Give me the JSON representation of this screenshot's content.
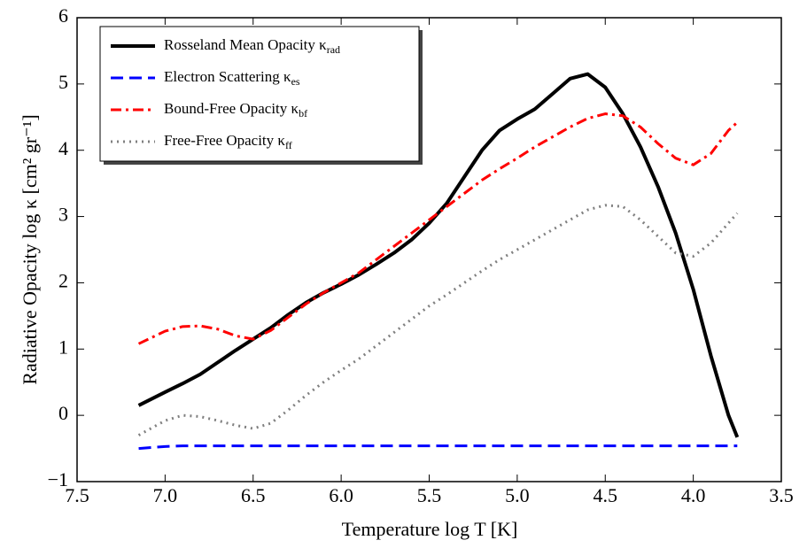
{
  "chart_data": {
    "type": "line",
    "xlabel": "Temperature log T [K]",
    "ylabel": "Radiative Opacity  log κ  [cm² gr⁻¹]",
    "xlim": [
      7.5,
      3.5
    ],
    "xticks": [
      7.5,
      {
        "value": 7.0,
        "label": "7.0"
      },
      6.5,
      {
        "value": 6.0,
        "label": "6.0"
      },
      5.5,
      {
        "value": 5.0,
        "label": "5.0"
      },
      4.5,
      {
        "value": 4.0,
        "label": "4.0"
      },
      3.5
    ],
    "ylim": [
      -1,
      6
    ],
    "yticks": [
      {
        "value": -1,
        "label": "−1"
      },
      0,
      1,
      2,
      3,
      4,
      5,
      6
    ],
    "legend": "upper left",
    "x": [
      7.15,
      7.0,
      6.9,
      6.8,
      6.7,
      6.6,
      6.5,
      6.4,
      6.3,
      6.2,
      6.1,
      6.0,
      5.9,
      5.8,
      5.7,
      5.6,
      5.5,
      5.4,
      5.3,
      5.2,
      5.1,
      5.0,
      4.9,
      4.8,
      4.7,
      4.6,
      4.5,
      4.4,
      4.3,
      4.2,
      4.1,
      4.0,
      3.9,
      3.8,
      3.75
    ],
    "series": [
      {
        "name": "Rosseland Mean Opacity κ",
        "name_sub": "rad",
        "color": "#000000",
        "style": "solid",
        "width": 4,
        "values": [
          0.15,
          0.35,
          0.48,
          0.62,
          0.8,
          0.98,
          1.15,
          1.32,
          1.52,
          1.7,
          1.85,
          1.98,
          2.12,
          2.28,
          2.45,
          2.65,
          2.9,
          3.2,
          3.6,
          4.0,
          4.3,
          4.47,
          4.62,
          4.85,
          5.08,
          5.15,
          4.95,
          4.55,
          4.05,
          3.45,
          2.75,
          1.9,
          0.9,
          0.0,
          -0.33
        ]
      },
      {
        "name": "Electron Scattering κ",
        "name_sub": "es",
        "color": "#0000ff",
        "style": "dashed",
        "width": 3,
        "values": [
          -0.5,
          -0.47,
          -0.46,
          -0.46,
          -0.46,
          -0.46,
          -0.46,
          -0.46,
          -0.46,
          -0.46,
          -0.46,
          -0.46,
          -0.46,
          -0.46,
          -0.46,
          -0.46,
          -0.46,
          -0.46,
          -0.46,
          -0.46,
          -0.46,
          -0.46,
          -0.46,
          -0.46,
          -0.46,
          -0.46,
          -0.46,
          -0.46,
          -0.46,
          -0.46,
          -0.46,
          -0.46,
          -0.46,
          -0.46,
          -0.46
        ]
      },
      {
        "name": "Bound-Free Opacity κ",
        "name_sub": "bf",
        "color": "#ff0000",
        "style": "dashdot",
        "width": 3,
        "values": [
          1.08,
          1.27,
          1.34,
          1.35,
          1.3,
          1.2,
          1.15,
          1.28,
          1.48,
          1.68,
          1.85,
          2.0,
          2.15,
          2.35,
          2.55,
          2.75,
          2.95,
          3.15,
          3.35,
          3.55,
          3.72,
          3.88,
          4.05,
          4.2,
          4.35,
          4.48,
          4.55,
          4.52,
          4.35,
          4.1,
          3.88,
          3.78,
          3.95,
          4.3,
          4.42
        ]
      },
      {
        "name": "Free-Free Opacity κ",
        "name_sub": "ff",
        "color": "#808080",
        "style": "dotted",
        "width": 3,
        "values": [
          -0.3,
          -0.08,
          0.0,
          -0.02,
          -0.08,
          -0.15,
          -0.2,
          -0.12,
          0.08,
          0.3,
          0.5,
          0.68,
          0.85,
          1.05,
          1.25,
          1.45,
          1.65,
          1.82,
          2.0,
          2.18,
          2.35,
          2.5,
          2.65,
          2.8,
          2.95,
          3.1,
          3.17,
          3.15,
          2.95,
          2.7,
          2.45,
          2.4,
          2.6,
          2.9,
          3.05
        ]
      }
    ]
  }
}
